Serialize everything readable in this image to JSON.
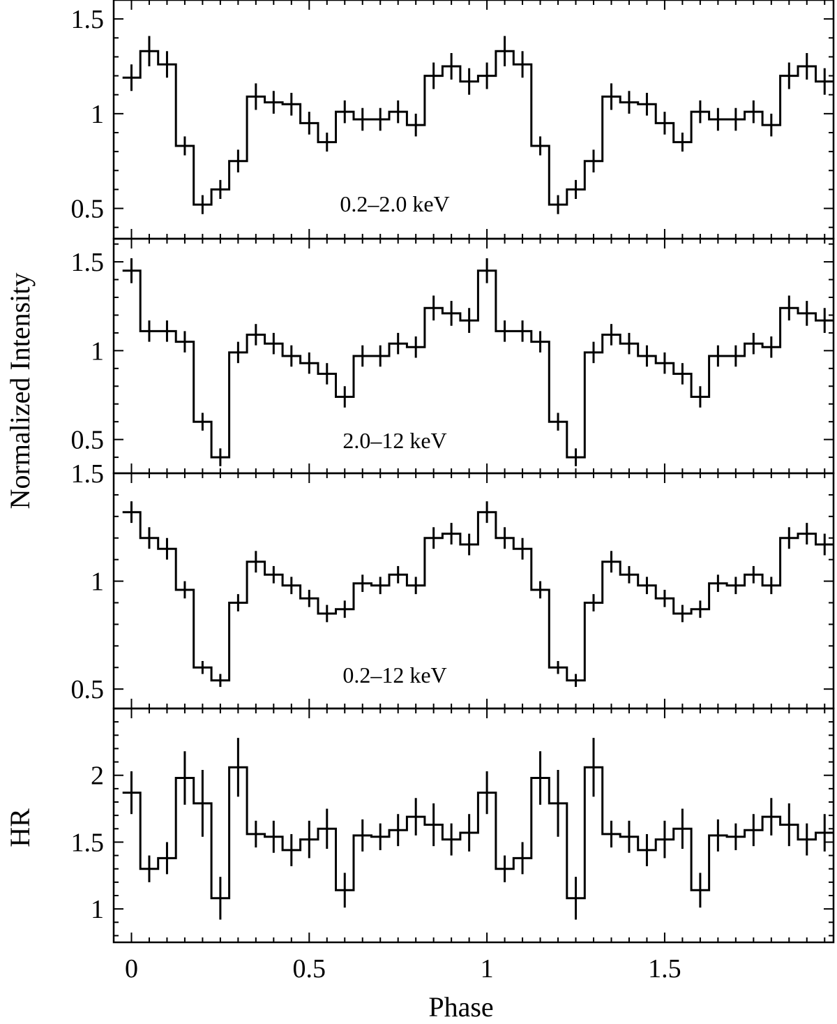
{
  "chart_data": [
    {
      "type": "step",
      "label": "0.2–2.0 keV",
      "ylabel": "",
      "xlim": [
        -0.05,
        1.975
      ],
      "ylim": [
        0.34,
        1.6
      ],
      "yticks": [
        0.5,
        1,
        1.5
      ],
      "ytick_labels": [
        "0.5",
        "1",
        "1.5"
      ],
      "x": [
        0.0,
        0.05,
        0.1,
        0.15,
        0.2,
        0.25,
        0.3,
        0.35,
        0.4,
        0.45,
        0.5,
        0.55,
        0.6,
        0.65,
        0.7,
        0.75,
        0.8,
        0.85,
        0.9,
        0.95,
        1.0,
        1.05,
        1.1,
        1.15,
        1.2,
        1.25,
        1.3,
        1.35,
        1.4,
        1.45,
        1.5,
        1.55,
        1.6,
        1.65,
        1.7,
        1.75,
        1.8,
        1.85,
        1.9,
        1.95
      ],
      "y": [
        1.19,
        1.33,
        1.26,
        0.83,
        0.52,
        0.6,
        0.75,
        1.09,
        1.06,
        1.05,
        0.95,
        0.85,
        1.01,
        0.97,
        0.97,
        1.01,
        0.94,
        1.2,
        1.25,
        1.17,
        1.2,
        1.33,
        1.26,
        0.83,
        0.52,
        0.6,
        0.75,
        1.09,
        1.06,
        1.05,
        0.95,
        0.85,
        1.01,
        0.97,
        0.97,
        1.01,
        0.94,
        1.2,
        1.25,
        1.17
      ],
      "yerr": [
        0.07,
        0.08,
        0.07,
        0.05,
        0.05,
        0.05,
        0.06,
        0.07,
        0.06,
        0.06,
        0.06,
        0.05,
        0.06,
        0.06,
        0.06,
        0.06,
        0.06,
        0.07,
        0.07,
        0.07,
        0.07,
        0.08,
        0.07,
        0.05,
        0.05,
        0.05,
        0.06,
        0.07,
        0.06,
        0.06,
        0.06,
        0.05,
        0.06,
        0.06,
        0.06,
        0.06,
        0.06,
        0.07,
        0.07,
        0.07
      ]
    },
    {
      "type": "step",
      "label": "2.0–12 keV",
      "ylabel": "Normalized Intensity",
      "xlim": [
        -0.05,
        1.975
      ],
      "ylim": [
        0.31,
        1.63
      ],
      "yticks": [
        0.5,
        1,
        1.5
      ],
      "ytick_labels": [
        "0.5",
        "1",
        "1.5"
      ],
      "x": [
        0.0,
        0.05,
        0.1,
        0.15,
        0.2,
        0.25,
        0.3,
        0.35,
        0.4,
        0.45,
        0.5,
        0.55,
        0.6,
        0.65,
        0.7,
        0.75,
        0.8,
        0.85,
        0.9,
        0.95,
        1.0,
        1.05,
        1.1,
        1.15,
        1.2,
        1.25,
        1.3,
        1.35,
        1.4,
        1.45,
        1.5,
        1.55,
        1.6,
        1.65,
        1.7,
        1.75,
        1.8,
        1.85,
        1.9,
        1.95
      ],
      "y": [
        1.45,
        1.11,
        1.11,
        1.05,
        0.6,
        0.4,
        0.99,
        1.09,
        1.04,
        0.97,
        0.93,
        0.87,
        0.74,
        0.97,
        0.97,
        1.04,
        1.02,
        1.24,
        1.21,
        1.17,
        1.45,
        1.11,
        1.11,
        1.05,
        0.6,
        0.4,
        0.99,
        1.09,
        1.04,
        0.97,
        0.93,
        0.87,
        0.74,
        0.97,
        0.97,
        1.04,
        1.02,
        1.24,
        1.21,
        1.17
      ],
      "yerr": [
        0.07,
        0.06,
        0.06,
        0.06,
        0.05,
        0.05,
        0.06,
        0.06,
        0.06,
        0.06,
        0.06,
        0.06,
        0.06,
        0.06,
        0.06,
        0.06,
        0.06,
        0.07,
        0.07,
        0.07,
        0.07,
        0.06,
        0.06,
        0.06,
        0.05,
        0.05,
        0.06,
        0.06,
        0.06,
        0.06,
        0.06,
        0.06,
        0.06,
        0.06,
        0.06,
        0.06,
        0.06,
        0.07,
        0.07,
        0.07
      ]
    },
    {
      "type": "step",
      "label": "0.2–12 keV",
      "ylabel": "",
      "xlim": [
        -0.05,
        1.975
      ],
      "ylim": [
        0.41,
        1.5
      ],
      "yticks": [
        0.5,
        1,
        1.5
      ],
      "ytick_labels": [
        "0.5",
        "1",
        "1.5"
      ],
      "x": [
        0.0,
        0.05,
        0.1,
        0.15,
        0.2,
        0.25,
        0.3,
        0.35,
        0.4,
        0.45,
        0.5,
        0.55,
        0.6,
        0.65,
        0.7,
        0.75,
        0.8,
        0.85,
        0.9,
        0.95,
        1.0,
        1.05,
        1.1,
        1.15,
        1.2,
        1.25,
        1.3,
        1.35,
        1.4,
        1.45,
        1.5,
        1.55,
        1.6,
        1.65,
        1.7,
        1.75,
        1.8,
        1.85,
        1.9,
        1.95
      ],
      "y": [
        1.32,
        1.2,
        1.15,
        0.96,
        0.6,
        0.54,
        0.9,
        1.09,
        1.03,
        0.98,
        0.92,
        0.85,
        0.87,
        0.99,
        0.98,
        1.03,
        0.98,
        1.2,
        1.22,
        1.17,
        1.32,
        1.2,
        1.15,
        0.96,
        0.6,
        0.54,
        0.9,
        1.09,
        1.03,
        0.98,
        0.92,
        0.85,
        0.87,
        0.99,
        0.98,
        1.03,
        0.98,
        1.2,
        1.22,
        1.17
      ],
      "yerr": [
        0.05,
        0.05,
        0.05,
        0.04,
        0.03,
        0.03,
        0.04,
        0.05,
        0.04,
        0.04,
        0.04,
        0.04,
        0.04,
        0.04,
        0.04,
        0.04,
        0.04,
        0.05,
        0.05,
        0.05,
        0.05,
        0.05,
        0.05,
        0.04,
        0.03,
        0.03,
        0.04,
        0.05,
        0.04,
        0.04,
        0.04,
        0.04,
        0.04,
        0.04,
        0.04,
        0.04,
        0.04,
        0.05,
        0.05,
        0.05
      ]
    },
    {
      "type": "step",
      "label": "",
      "ylabel": "HR",
      "xlabel": "Phase",
      "xlim": [
        -0.05,
        1.975
      ],
      "ylim": [
        0.75,
        2.5
      ],
      "yticks": [
        1,
        1.5,
        2
      ],
      "ytick_labels": [
        "1",
        "1.5",
        "2"
      ],
      "xticks": [
        0,
        0.5,
        1,
        1.5
      ],
      "xtick_labels": [
        "0",
        "0.5",
        "1",
        "1.5"
      ],
      "x": [
        0.0,
        0.05,
        0.1,
        0.15,
        0.2,
        0.25,
        0.3,
        0.35,
        0.4,
        0.45,
        0.5,
        0.55,
        0.6,
        0.65,
        0.7,
        0.75,
        0.8,
        0.85,
        0.9,
        0.95,
        1.0,
        1.05,
        1.1,
        1.15,
        1.2,
        1.25,
        1.3,
        1.35,
        1.4,
        1.45,
        1.5,
        1.55,
        1.6,
        1.65,
        1.7,
        1.75,
        1.8,
        1.85,
        1.9,
        1.95
      ],
      "y": [
        1.87,
        1.3,
        1.38,
        1.98,
        1.79,
        1.08,
        2.06,
        1.56,
        1.54,
        1.44,
        1.52,
        1.6,
        1.14,
        1.55,
        1.54,
        1.59,
        1.69,
        1.63,
        1.52,
        1.57,
        1.87,
        1.3,
        1.38,
        1.98,
        1.79,
        1.08,
        2.06,
        1.56,
        1.54,
        1.44,
        1.52,
        1.6,
        1.14,
        1.55,
        1.54,
        1.59,
        1.69,
        1.63,
        1.52,
        1.57
      ],
      "yerr": [
        0.16,
        0.1,
        0.12,
        0.2,
        0.25,
        0.16,
        0.22,
        0.1,
        0.12,
        0.12,
        0.14,
        0.15,
        0.13,
        0.12,
        0.1,
        0.12,
        0.14,
        0.16,
        0.12,
        0.14,
        0.16,
        0.1,
        0.12,
        0.2,
        0.25,
        0.16,
        0.22,
        0.1,
        0.12,
        0.12,
        0.14,
        0.15,
        0.13,
        0.12,
        0.1,
        0.12,
        0.14,
        0.16,
        0.12,
        0.14
      ]
    }
  ]
}
